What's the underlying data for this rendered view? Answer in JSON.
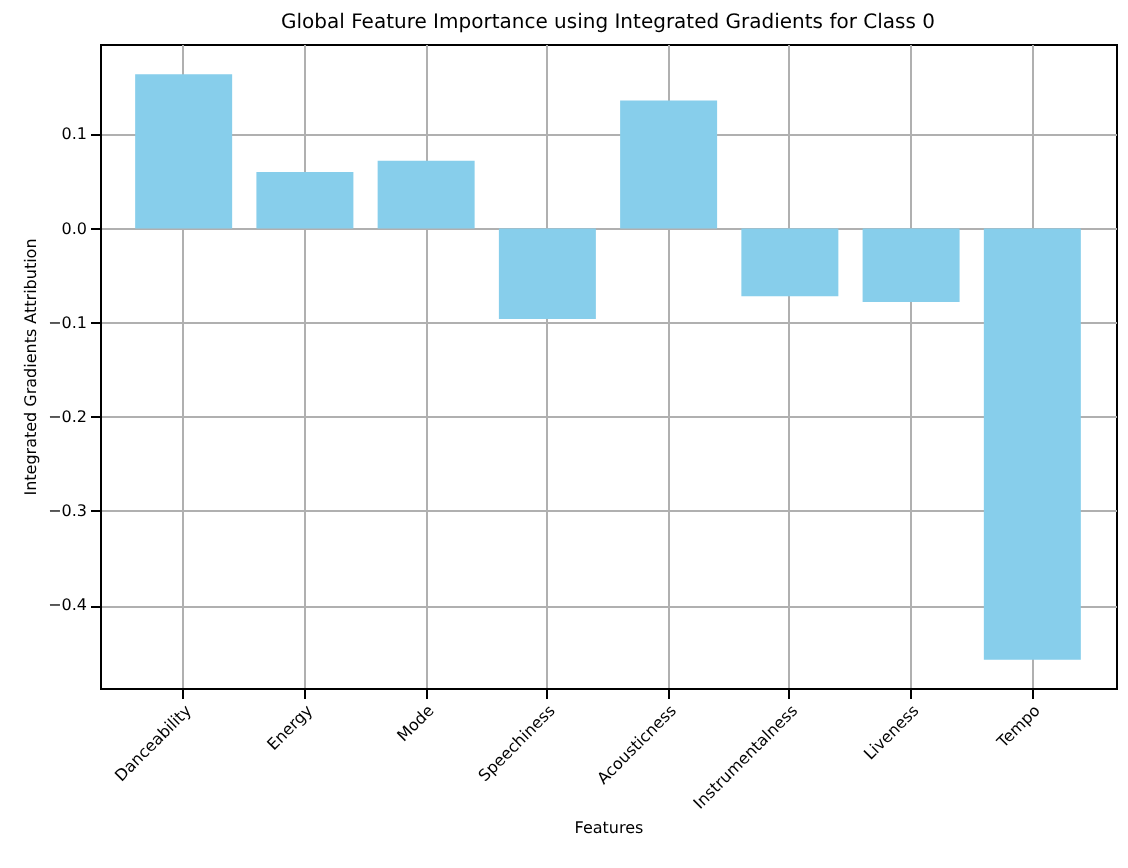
{
  "chart_data": {
    "type": "bar",
    "title": "Global Feature Importance using Integrated Gradients for Class 0",
    "xlabel": "Features",
    "ylabel": "Integrated Gradients Attribution",
    "categories": [
      "Danceability",
      "Energy",
      "Mode",
      "Speechiness",
      "Acousticness",
      "Instrumentalness",
      "Liveness",
      "Tempo"
    ],
    "values": [
      0.164,
      0.06,
      0.072,
      -0.096,
      0.136,
      -0.072,
      -0.078,
      -0.458
    ],
    "color": "#87ceeb",
    "ylim": [
      -0.488,
      0.196
    ],
    "yticks": [
      {
        "value": -0.4,
        "label": "−0.4"
      },
      {
        "value": -0.3,
        "label": "−0.3"
      },
      {
        "value": -0.2,
        "label": "−0.2"
      },
      {
        "value": -0.1,
        "label": "−0.1"
      },
      {
        "value": 0,
        "label": "0.0"
      },
      0.1
    ],
    "grid": true
  }
}
